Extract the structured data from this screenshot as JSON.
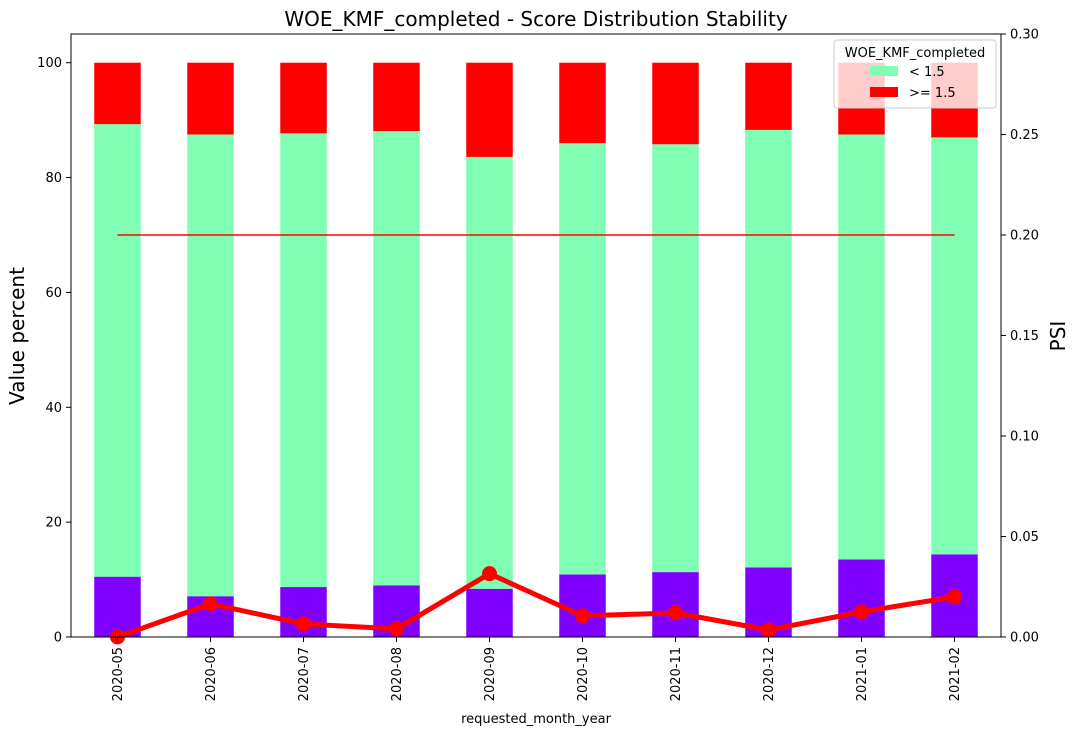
{
  "chart_data": {
    "type": "bar",
    "title": "WOE_KMF_completed  - Score Distribution Stability",
    "xlabel": "requested_month_year",
    "ylabel": "Value percent",
    "y2label": "PSI",
    "categories": [
      "2020-05",
      "2020-06",
      "2020-07",
      "2020-08",
      "2020-09",
      "2020-10",
      "2020-11",
      "2020-12",
      "2021-01",
      "2021-02"
    ],
    "stacked": true,
    "series": [
      {
        "name": "",
        "color": "#8000ff",
        "values": [
          10.5,
          7.1,
          8.7,
          9.0,
          8.4,
          10.9,
          11.3,
          12.1,
          13.5,
          14.4
        ]
      },
      {
        "name": "< 1.5",
        "color": "#80ffb4",
        "values": [
          78.8,
          80.4,
          79.0,
          79.1,
          75.2,
          75.1,
          74.5,
          76.2,
          74.0,
          72.6
        ]
      },
      {
        "name": ">= 1.5",
        "color": "#ff0000",
        "values": [
          10.7,
          12.5,
          12.3,
          11.9,
          16.4,
          14.0,
          14.2,
          11.7,
          12.5,
          13.0
        ]
      }
    ],
    "ylim": [
      0,
      105
    ],
    "yticks": [
      0,
      20,
      40,
      60,
      80,
      100
    ],
    "y2lim": [
      0,
      0.3
    ],
    "y2ticks": [
      "0.00",
      "0.05",
      "0.10",
      "0.15",
      "0.20",
      "0.25",
      "0.30"
    ],
    "psi_line": {
      "color": "#ff0000",
      "values": [
        0.0,
        0.0165,
        0.0065,
        0.004,
        0.0315,
        0.0105,
        0.012,
        0.0035,
        0.0125,
        0.02
      ]
    },
    "threshold_line": {
      "color": "#ff0000",
      "value": 0.2
    },
    "legend": {
      "title": "WOE_KMF_completed",
      "position": "top-right",
      "entries": [
        "< 1.5",
        ">= 1.5"
      ]
    }
  }
}
